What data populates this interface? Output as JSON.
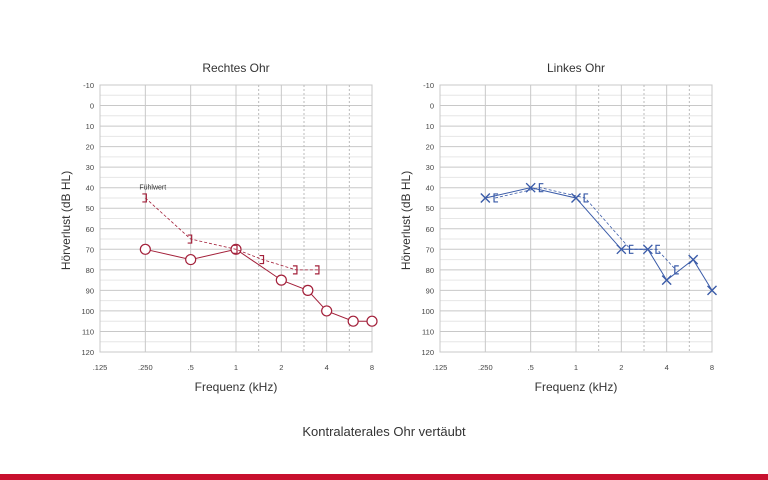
{
  "caption": "Kontralaterales Ohr vertäubt",
  "colors": {
    "right": "#a3203a",
    "left": "#3a5ba8",
    "grid": "#c8c8c8",
    "text": "#333333",
    "bar": "#c8102e"
  },
  "chart_data": [
    {
      "type": "line",
      "title": "Rechtes Ohr",
      "xlabel": "Frequenz (kHz)",
      "ylabel": "Hörverlust (dB HL)",
      "x_ticks": [
        ".125",
        ".250",
        ".5",
        "1",
        "2",
        "4",
        "8"
      ],
      "y_ticks": [
        "-10",
        "0",
        "10",
        "20",
        "30",
        "40",
        "50",
        "60",
        "70",
        "80",
        "90",
        "100",
        "110",
        "120"
      ],
      "ylim": [
        -10,
        120
      ],
      "y_inverted": true,
      "annotation": "Fühlwert",
      "series": [
        {
          "symbol": "O",
          "kind": "air",
          "x": [
            0.25,
            0.5,
            1,
            2,
            3,
            4,
            6,
            8
          ],
          "y": [
            70,
            75,
            70,
            85,
            90,
            100,
            105,
            105
          ]
        },
        {
          "symbol": "]",
          "kind": "bone",
          "x": [
            0.25,
            0.5,
            1,
            1.5,
            2.5,
            3.5
          ],
          "y": [
            45,
            65,
            70,
            75,
            80,
            80
          ]
        }
      ]
    },
    {
      "type": "line",
      "title": "Linkes Ohr",
      "xlabel": "Frequenz (kHz)",
      "ylabel": "Hörverlust (dB HL)",
      "x_ticks": [
        ".125",
        ".250",
        ".5",
        "1",
        "2",
        "4",
        "8"
      ],
      "y_ticks": [
        "-10",
        "0",
        "10",
        "20",
        "30",
        "40",
        "50",
        "60",
        "70",
        "80",
        "90",
        "100",
        "110",
        "120"
      ],
      "ylim": [
        -10,
        120
      ],
      "y_inverted": true,
      "series": [
        {
          "symbol": "X",
          "kind": "air",
          "x": [
            0.25,
            0.5,
            1,
            2,
            3,
            4,
            6,
            8
          ],
          "y": [
            45,
            40,
            45,
            70,
            70,
            85,
            75,
            90
          ]
        },
        {
          "symbol": "[",
          "kind": "bone",
          "x": [
            0.29,
            0.58,
            1.15,
            2.3,
            3.45,
            4.6
          ],
          "y": [
            45,
            40,
            45,
            70,
            70,
            80
          ]
        }
      ]
    }
  ]
}
